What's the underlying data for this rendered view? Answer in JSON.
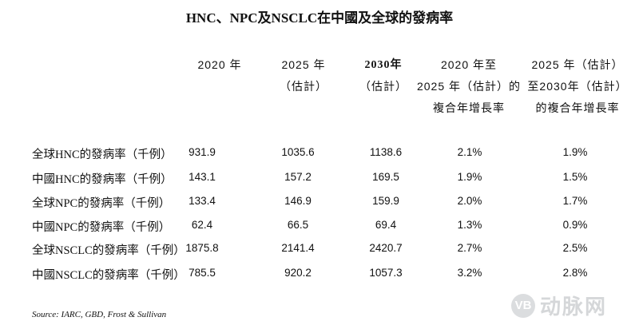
{
  "title": "HNC、NPC及NSCLC在中國及全球的發病率",
  "headers": [
    {
      "lines": [
        "",
        "",
        "2020 年"
      ]
    },
    {
      "lines": [
        "",
        "2025 年",
        "（估計）"
      ]
    },
    {
      "lines": [
        "",
        "2030年",
        "（估計）"
      ]
    },
    {
      "lines": [
        "2020 年至",
        "2025 年（估計）的",
        "複合年增長率"
      ]
    },
    {
      "lines": [
        "2025 年（估計）",
        "至2030年（估計）",
        "的複合年增長率"
      ]
    }
  ],
  "rows": [
    {
      "label": "全球HNC的發病率（千例）",
      "values": [
        "931.9",
        "1035.6",
        "1138.6",
        "2.1%",
        "1.9%"
      ]
    },
    {
      "label": "中國HNC的發病率（千例）",
      "values": [
        "143.1",
        "157.2",
        "169.5",
        "1.9%",
        "1.5%"
      ]
    },
    {
      "label": "全球NPC的發病率（千例）",
      "values": [
        "133.4",
        "146.9",
        "159.9",
        "2.0%",
        "1.7%"
      ]
    },
    {
      "label": "中國NPC的發病率（千例）",
      "values": [
        "62.4",
        "66.5",
        "69.4",
        "1.3%",
        "0.9%"
      ]
    },
    {
      "label": "全球NSCLC的發病率（千例）",
      "values": [
        "1875.8",
        "2141.4",
        "2420.7",
        "2.7%",
        "2.5%"
      ]
    },
    {
      "label": "中國NSCLC的發病率（千例）",
      "values": [
        "785.5",
        "920.2",
        "1057.3",
        "3.2%",
        "2.8%"
      ]
    }
  ],
  "source": "Source: IARC, GBD, Frost & Sullivan",
  "watermark": {
    "logo": "VB",
    "text": "动脉网"
  }
}
